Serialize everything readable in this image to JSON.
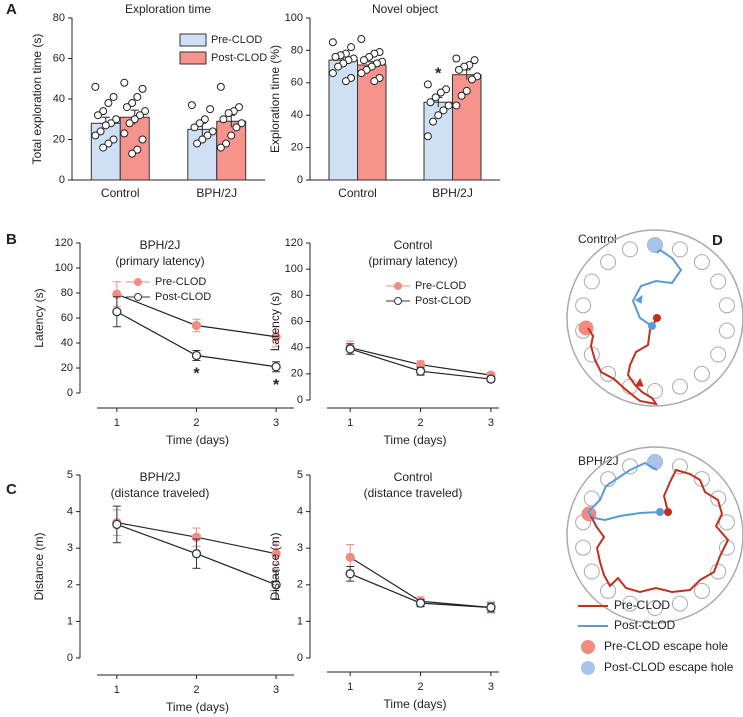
{
  "chart_data": [
    {
      "type": "bar",
      "panel": "A",
      "title": "Exploration time",
      "ylabel": "Total exploration time (s)",
      "categories": [
        "Control",
        "BPH/2J"
      ],
      "ylim": [
        0,
        80
      ],
      "yticks": [
        0,
        20,
        40,
        60,
        80
      ],
      "legend": "upper right",
      "series": [
        {
          "name": "Pre-CLOD",
          "color": "#cfe0f5",
          "values": [
            28,
            25
          ],
          "errors": [
            3,
            3
          ],
          "points": [
            [
              46,
              41,
              38,
              34,
              32,
              30,
              28,
              27,
              24,
              22,
              20,
              18,
              16
            ],
            [
              37,
              35,
              30,
              28,
              26,
              24,
              22,
              20,
              18
            ]
          ]
        },
        {
          "name": "Post-CLOD",
          "color": "#f5938c",
          "values": [
            31,
            29
          ],
          "errors": [
            3.5,
            3
          ],
          "points": [
            [
              48,
              45,
              41,
              38,
              36,
              34,
              32,
              30,
              28,
              23,
              20,
              15,
              13
            ],
            [
              46,
              36,
              34,
              33,
              30,
              28,
              26,
              22,
              18,
              16
            ]
          ]
        }
      ]
    },
    {
      "type": "bar",
      "title": "Novel object",
      "ylabel": "Exploration time (%)",
      "categories": [
        "Control",
        "BPH/2J"
      ],
      "ylim": [
        0,
        100
      ],
      "yticks": [
        0,
        20,
        40,
        60,
        80,
        100
      ],
      "series": [
        {
          "name": "Pre-CLOD",
          "color": "#cfe0f5",
          "values": [
            74,
            48
          ],
          "errors": [
            2,
            3
          ],
          "annotations": [
            null,
            "*"
          ],
          "points": [
            [
              85,
              82,
              78,
              77,
              76,
              75,
              74,
              72,
              70,
              66,
              63,
              61
            ],
            [
              59,
              56,
              54,
              51,
              48,
              46,
              43,
              40,
              36,
              27
            ]
          ]
        },
        {
          "name": "Post-CLOD",
          "color": "#f5938c",
          "values": [
            71,
            65
          ],
          "errors": [
            2,
            3
          ],
          "points": [
            [
              87,
              79,
              78,
              76,
              74,
              73,
              72,
              70,
              68,
              66,
              63,
              61
            ],
            [
              75,
              74,
              71,
              70,
              68,
              64,
              62,
              55,
              52,
              46
            ]
          ]
        }
      ]
    },
    {
      "type": "line",
      "panel": "B",
      "title": "BPH/2J",
      "subtitle": "(primary latency)",
      "xlabel": "Time (days)",
      "ylabel": "Latency (s)",
      "x": [
        1,
        2,
        3
      ],
      "xlim": [
        0.6,
        3.3
      ],
      "xticks": [
        1,
        2,
        3
      ],
      "ylim": [
        0,
        120
      ],
      "yticks": [
        0,
        20,
        40,
        60,
        80,
        100,
        120
      ],
      "legend": "upper right",
      "series": [
        {
          "name": "Pre-CLOD",
          "color": "#f08c84",
          "marker": "filled",
          "values": [
            79,
            54,
            45
          ],
          "errors": [
            10,
            5,
            8
          ]
        },
        {
          "name": "Post-CLOD",
          "color": "#2b3a4a",
          "marker": "open",
          "values": [
            65,
            30,
            21
          ],
          "errors": [
            12,
            4,
            4
          ],
          "annotations": [
            null,
            "*",
            "*"
          ]
        }
      ]
    },
    {
      "type": "line",
      "title": "Control",
      "subtitle": "(primary latency)",
      "xlabel": "Time (days)",
      "ylabel": "Latency (s)",
      "x": [
        1,
        2,
        3
      ],
      "xlim": [
        0.5,
        3.2
      ],
      "xticks": [
        1,
        2,
        3
      ],
      "ylim": [
        0,
        120
      ],
      "yticks": [
        0,
        20,
        40,
        60,
        80,
        100,
        120
      ],
      "legend": "upper right",
      "series": [
        {
          "name": "Pre-CLOD",
          "color": "#f08c84",
          "marker": "filled",
          "values": [
            40,
            27,
            19
          ],
          "errors": [
            5,
            3,
            2
          ]
        },
        {
          "name": "Post-CLOD",
          "color": "#2b3a4a",
          "marker": "open",
          "values": [
            39,
            22,
            16
          ],
          "errors": [
            4,
            3,
            2
          ]
        }
      ]
    },
    {
      "type": "line",
      "panel": "C",
      "title": "BPH/2J",
      "subtitle": "(distance traveled)",
      "xlabel": "Time (days)",
      "ylabel": "Distance (m)",
      "x": [
        1,
        2,
        3
      ],
      "xlim": [
        0.6,
        3.3
      ],
      "xticks": [
        1,
        2,
        3
      ],
      "ylim": [
        0,
        5
      ],
      "yticks": [
        0,
        1,
        2,
        3,
        4,
        5
      ],
      "series": [
        {
          "name": "Pre-CLOD",
          "color": "#f08c84",
          "marker": "filled",
          "values": [
            3.7,
            3.3,
            2.85
          ],
          "errors": [
            0.35,
            0.25,
            0.3
          ]
        },
        {
          "name": "Post-CLOD",
          "color": "#2b3a4a",
          "marker": "open",
          "values": [
            3.65,
            2.85,
            2.0
          ],
          "errors": [
            0.5,
            0.4,
            0.4
          ]
        }
      ]
    },
    {
      "type": "line",
      "title": "Control",
      "subtitle": "(distance traveled)",
      "xlabel": "Time (days)",
      "ylabel": "Distance (m)",
      "x": [
        1,
        2,
        3
      ],
      "xlim": [
        0.5,
        3.2
      ],
      "xticks": [
        1,
        2,
        3
      ],
      "ylim": [
        0,
        5
      ],
      "yticks": [
        0,
        1,
        2,
        3,
        4,
        5
      ],
      "series": [
        {
          "name": "Pre-CLOD",
          "color": "#f08c84",
          "marker": "filled",
          "values": [
            2.75,
            1.55,
            1.38
          ],
          "errors": [
            0.35,
            0.12,
            0.15
          ]
        },
        {
          "name": "Post-CLOD",
          "color": "#2b3a4a",
          "marker": "open",
          "values": [
            2.3,
            1.5,
            1.38
          ],
          "errors": [
            0.2,
            0.1,
            0.12
          ]
        }
      ]
    }
  ],
  "diagram": {
    "panel": "D",
    "mazes": [
      "Control",
      "BPH/2J"
    ],
    "legend": [
      "Pre-CLOD",
      "Post-CLOD",
      "Pre-CLOD escape hole",
      "Post-CLOD escape hole"
    ]
  }
}
